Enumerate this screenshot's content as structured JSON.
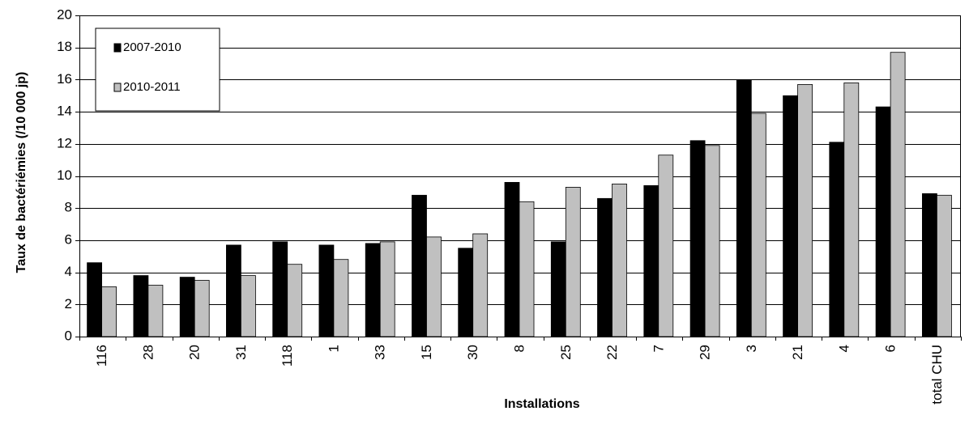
{
  "chart_data": {
    "type": "bar",
    "title": "",
    "xlabel": "Installations",
    "ylabel": "Taux de bactériémies (/10 000 jp)",
    "ylim": [
      0,
      20
    ],
    "yticks": [
      0,
      2,
      4,
      6,
      8,
      10,
      12,
      14,
      16,
      18,
      20
    ],
    "grid": true,
    "legend_position": "top-left",
    "categories": [
      "116",
      "28",
      "20",
      "31",
      "118",
      "1",
      "33",
      "15",
      "30",
      "8",
      "25",
      "22",
      "7",
      "29",
      "3",
      "21",
      "4",
      "6",
      "total CHU"
    ],
    "series": [
      {
        "name": "2007-2010",
        "color": "#000000",
        "values": [
          4.6,
          3.8,
          3.7,
          5.7,
          5.9,
          5.7,
          5.8,
          8.8,
          5.5,
          9.6,
          5.9,
          8.6,
          9.4,
          12.2,
          16.0,
          15.0,
          12.1,
          14.3,
          8.9
        ]
      },
      {
        "name": "2010-2011",
        "color": "#c0c0c0",
        "values": [
          3.1,
          3.2,
          3.5,
          3.8,
          4.5,
          4.8,
          5.9,
          6.2,
          6.4,
          8.4,
          9.3,
          9.5,
          11.3,
          11.9,
          13.9,
          15.7,
          15.8,
          17.7,
          8.8
        ]
      }
    ]
  }
}
